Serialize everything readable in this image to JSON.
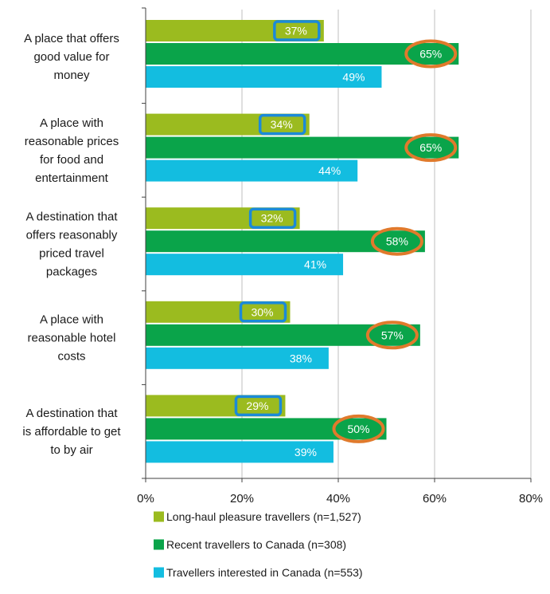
{
  "chart_data": {
    "type": "bar",
    "orientation": "horizontal",
    "title": "",
    "xlabel": "",
    "ylabel": "",
    "categories": [
      "A place that offers good value for money",
      "A place with reasonable prices for food and entertainment",
      "A destination that offers reasonably priced travel packages",
      "A place with reasonable hotel costs",
      "A destination that is affordable to get to by air"
    ],
    "category_lines": [
      [
        "A place that offers",
        "good value for",
        "money"
      ],
      [
        "A place with",
        "reasonable prices",
        "for food and",
        "entertainment"
      ],
      [
        "A destination that",
        "offers reasonably",
        "priced travel",
        "packages"
      ],
      [
        "A place with",
        "reasonable hotel",
        "costs"
      ],
      [
        "A destination that",
        "is affordable to get",
        "to by air"
      ]
    ],
    "series": [
      {
        "name": "Long-haul pleasure travellers (n=1,527)",
        "color": "#9bbb1f",
        "label_color": "#ffffff",
        "highlight": "blue-box",
        "values": [
          37,
          34,
          32,
          30,
          29
        ],
        "labels": [
          "37%",
          "34%",
          "32%",
          "30%",
          "29%"
        ]
      },
      {
        "name": "Recent travellers to Canada (n=308)",
        "color": "#0aa44a",
        "label_color": "#ffffff",
        "highlight": "orange-ellipse",
        "values": [
          65,
          65,
          58,
          57,
          50
        ],
        "labels": [
          "65%",
          "65%",
          "58%",
          "57%",
          "50%"
        ]
      },
      {
        "name": "Travellers interested in Canada (n=553)",
        "color": "#13bde0",
        "label_color": "#ffffff",
        "highlight": "none",
        "values": [
          49,
          44,
          41,
          38,
          39
        ],
        "labels": [
          "49%",
          "44%",
          "41%",
          "38%",
          "39%"
        ]
      }
    ],
    "xlim": [
      0,
      80
    ],
    "xticks": [
      0,
      20,
      40,
      60,
      80
    ],
    "xtick_labels": [
      "0%",
      "20%",
      "40%",
      "60%",
      "80%"
    ],
    "grid": "vertical",
    "legend_position": "bottom",
    "highlight_colors": {
      "box": "#1b8ad8",
      "ellipse": "#e07a2c"
    }
  }
}
